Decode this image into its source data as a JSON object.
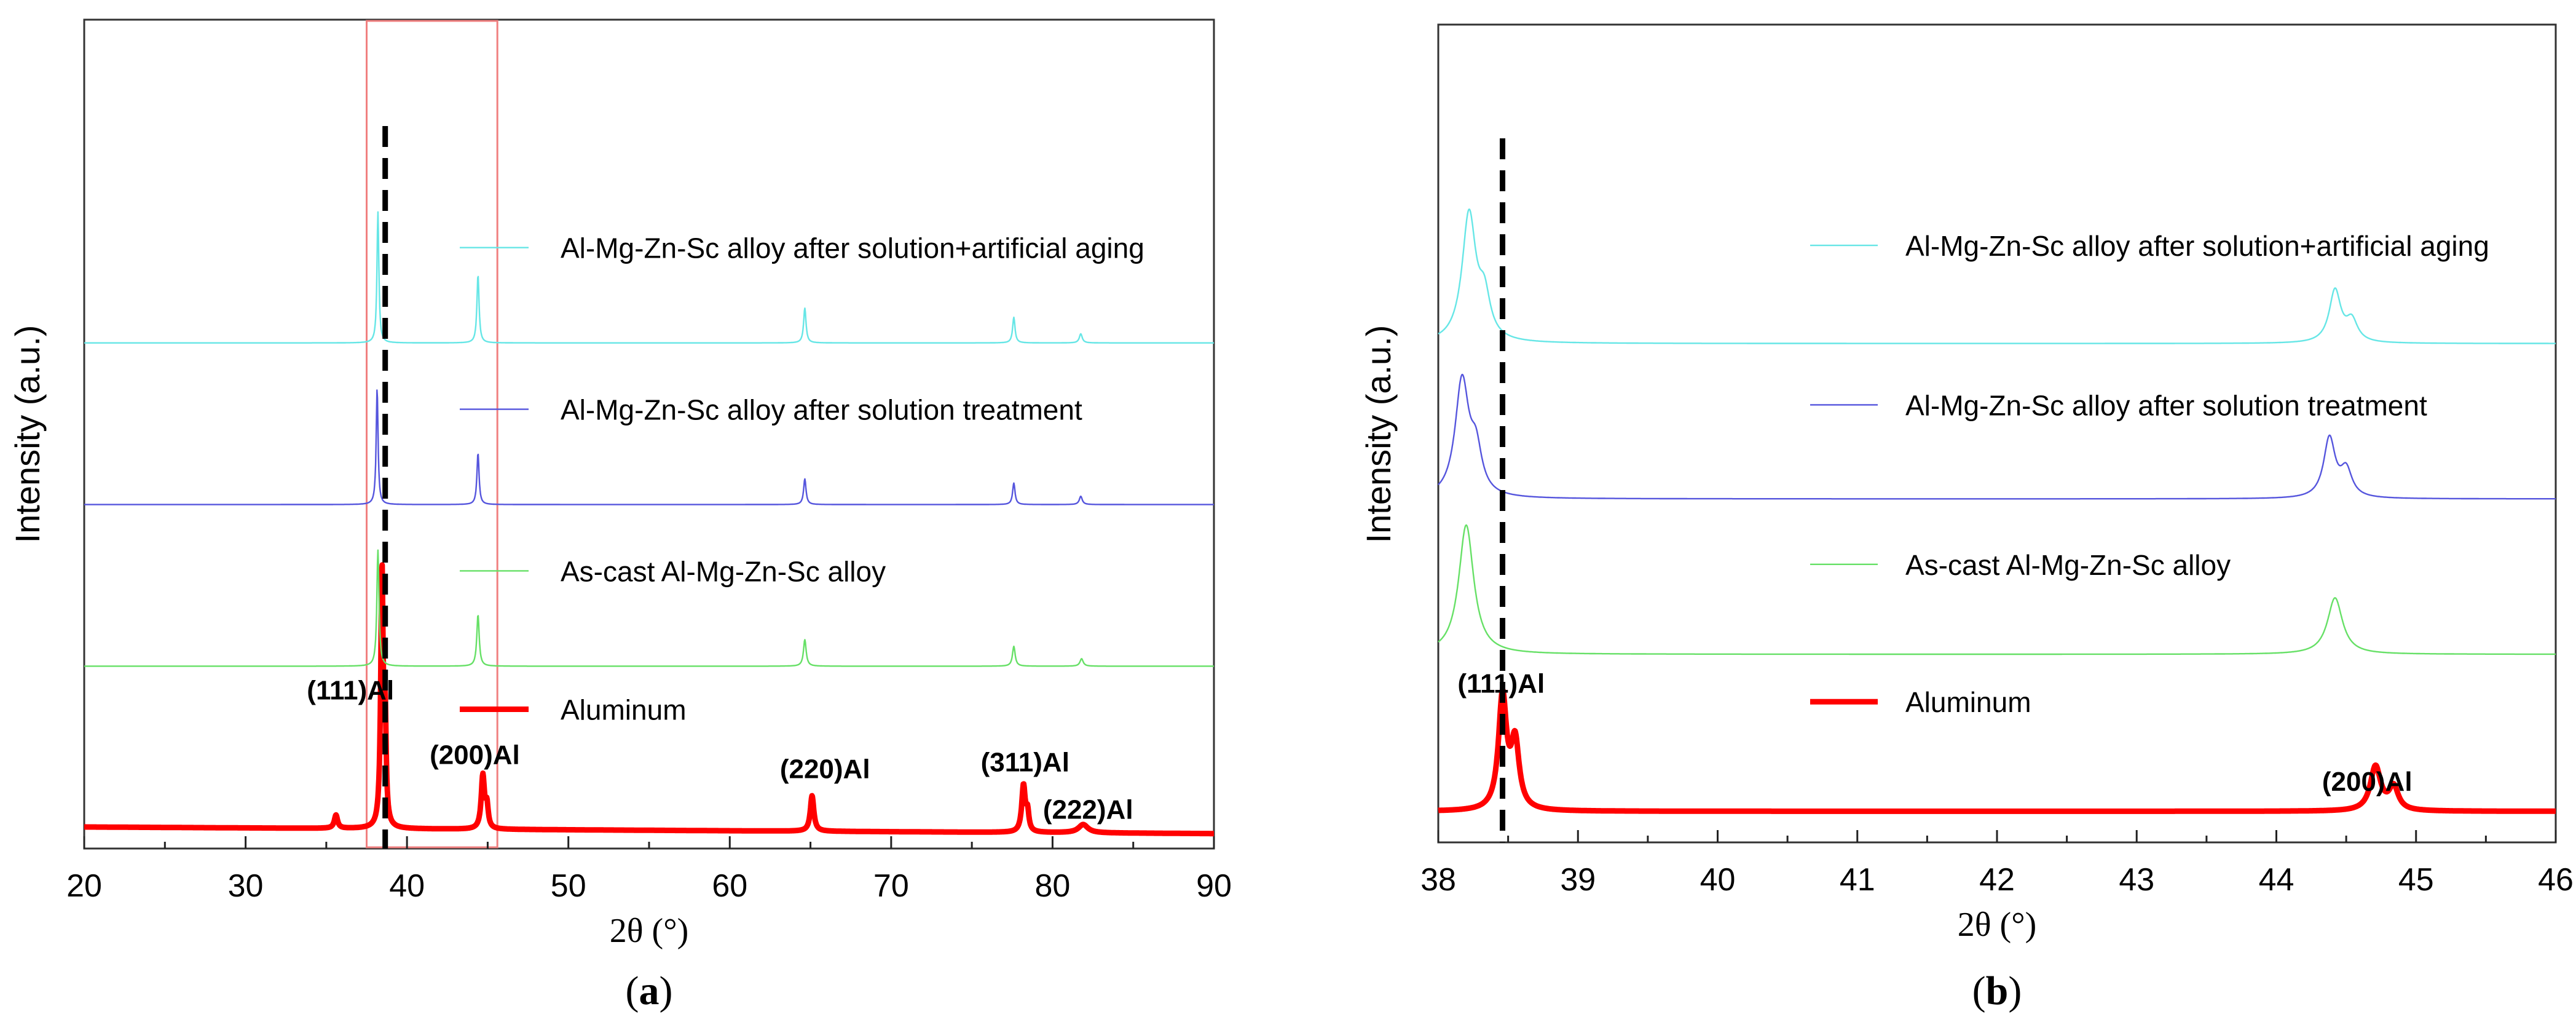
{
  "figure": {
    "panel_a_caption_open": "(",
    "panel_a_caption_letter": "a",
    "panel_a_caption_close": ")",
    "panel_b_caption_open": "(",
    "panel_b_caption_letter": "b",
    "panel_b_caption_close": ")"
  },
  "colors": {
    "aluminum": "#ff0000",
    "as_cast": "#66e066",
    "solution": "#5555dd",
    "aging": "#66e6e6",
    "dashed": "#000000",
    "zoom_box": "#f08080",
    "axis": "#222222"
  },
  "chart_data": [
    {
      "type": "line",
      "panel": "a",
      "title": "",
      "xlabel": "2θ (°)",
      "ylabel": "Intensity (a.u.)",
      "xlim": [
        20,
        90
      ],
      "xticks": [
        20,
        30,
        40,
        50,
        60,
        70,
        80,
        90
      ],
      "ylim": [
        0,
        100
      ],
      "yticks": [],
      "grid": false,
      "legend_placement": "inline-right-of-box",
      "reference_line_x": 38.65,
      "zoom_box_x": [
        37.5,
        45.6
      ],
      "series": [
        {
          "name": "Aluminum",
          "color_key": "aluminum",
          "line_weight": "thick",
          "baseline": 2.6,
          "baseline_drift": [
            [
              20,
              0.0
            ],
            [
              90,
              -0.8
            ]
          ],
          "peaks": [
            [
              35.6,
              1.6,
              0.12
            ],
            [
              38.45,
              31.0,
              0.09
            ],
            [
              38.65,
              11.5,
              0.07
            ],
            [
              44.7,
              6.4,
              0.12
            ],
            [
              44.95,
              2.6,
              0.1
            ],
            [
              65.1,
              4.3,
              0.13
            ],
            [
              78.2,
              5.6,
              0.13
            ],
            [
              78.45,
              2.2,
              0.1
            ],
            [
              81.9,
              1.0,
              0.35
            ]
          ]
        },
        {
          "name": "As-cast Al-Mg-Zn-Sc alloy",
          "color_key": "as_cast",
          "line_weight": "thin",
          "baseline": 22.0,
          "baseline_drift": [
            [
              20,
              0.0
            ],
            [
              90,
              0.0
            ]
          ],
          "peaks": [
            [
              38.2,
              14.0,
              0.08
            ],
            [
              44.4,
              6.2,
              0.09
            ],
            [
              64.65,
              3.2,
              0.1
            ],
            [
              77.6,
              2.4,
              0.1
            ],
            [
              81.8,
              0.9,
              0.12
            ]
          ]
        },
        {
          "name": "Al-Mg-Zn-Sc alloy after solution treatment",
          "color_key": "solution",
          "line_weight": "thin",
          "baseline": 41.5,
          "baseline_drift": [
            [
              20,
              0.0
            ],
            [
              90,
              0.0
            ]
          ],
          "peaks": [
            [
              38.15,
              14.0,
              0.07
            ],
            [
              44.4,
              6.2,
              0.08
            ],
            [
              64.65,
              3.1,
              0.09
            ],
            [
              77.6,
              2.6,
              0.09
            ],
            [
              81.75,
              1.0,
              0.11
            ]
          ]
        },
        {
          "name": "Al-Mg-Zn-Sc alloy after solution+artificial aging",
          "color_key": "aging",
          "line_weight": "thin",
          "baseline": 61.0,
          "baseline_drift": [
            [
              20,
              0.0
            ],
            [
              90,
              0.0
            ]
          ],
          "peaks": [
            [
              38.2,
              15.8,
              0.07
            ],
            [
              44.4,
              8.2,
              0.08
            ],
            [
              64.65,
              4.2,
              0.09
            ],
            [
              77.6,
              3.1,
              0.09
            ],
            [
              81.75,
              1.1,
              0.11
            ]
          ]
        }
      ],
      "legend": [
        {
          "label": "Al-Mg-Zn-Sc alloy after solution+artificial aging",
          "color_key": "aging",
          "line_weight": "thin",
          "level": 72.5
        },
        {
          "label": "Al-Mg-Zn-Sc alloy after solution treatment",
          "color_key": "solution",
          "line_weight": "thin",
          "level": 53.0
        },
        {
          "label": "As-cast Al-Mg-Zn-Sc alloy",
          "color_key": "as_cast",
          "line_weight": "thin",
          "level": 33.5
        },
        {
          "label": "Aluminum",
          "color_key": "aluminum",
          "line_weight": "thick",
          "level": 16.8
        }
      ],
      "annotations": [
        {
          "text": "(111)Al",
          "x": 36.5,
          "y": 18.0
        },
        {
          "text": "(200)Al",
          "x": 44.2,
          "y": 10.2
        },
        {
          "text": "(220)Al",
          "x": 65.9,
          "y": 8.5
        },
        {
          "text": "(311)Al",
          "x": 78.3,
          "y": 9.3
        },
        {
          "text": "(222)Al",
          "x": 82.2,
          "y": 3.6
        }
      ]
    },
    {
      "type": "line",
      "panel": "b",
      "title": "",
      "xlabel": "2θ (°)",
      "ylabel": "Intensity (a.u.)",
      "xlim": [
        38,
        46
      ],
      "xticks": [
        38,
        39,
        40,
        41,
        42,
        43,
        44,
        45,
        46
      ],
      "ylim": [
        0,
        100
      ],
      "yticks": [],
      "grid": false,
      "legend_placement": "inline-center",
      "reference_line_x": 38.46,
      "series": [
        {
          "name": "Aluminum",
          "color_key": "aluminum",
          "line_weight": "thick",
          "baseline": 3.8,
          "baseline_drift": [
            [
              38,
              0.0
            ],
            [
              46,
              0.0
            ]
          ],
          "peaks": [
            [
              38.46,
              13.8,
              0.035
            ],
            [
              38.55,
              8.0,
              0.035
            ],
            [
              44.71,
              5.4,
              0.045
            ],
            [
              44.84,
              2.8,
              0.04
            ]
          ]
        },
        {
          "name": "As-cast Al-Mg-Zn-Sc alloy",
          "color_key": "as_cast",
          "line_weight": "thin",
          "baseline": 23.0,
          "baseline_drift": [
            [
              38,
              0.0
            ],
            [
              46,
              0.0
            ]
          ],
          "peaks": [
            [
              38.2,
              15.8,
              0.065
            ],
            [
              44.42,
              6.9,
              0.065
            ]
          ]
        },
        {
          "name": "Al-Mg-Zn-Sc alloy after solution treatment",
          "color_key": "solution",
          "line_weight": "thin",
          "baseline": 42.0,
          "baseline_drift": [
            [
              38,
              0.0
            ],
            [
              46,
              0.0
            ]
          ],
          "peaks": [
            [
              38.17,
              14.2,
              0.06
            ],
            [
              38.27,
              5.0,
              0.05
            ],
            [
              44.38,
              7.3,
              0.05
            ],
            [
              44.5,
              3.3,
              0.05
            ]
          ]
        },
        {
          "name": "Al-Mg-Zn-Sc alloy after solution+artificial aging",
          "color_key": "aging",
          "line_weight": "thin",
          "baseline": 61.0,
          "baseline_drift": [
            [
              38,
              0.0
            ],
            [
              46,
              0.0
            ]
          ],
          "peaks": [
            [
              38.22,
              15.6,
              0.06
            ],
            [
              38.33,
              4.8,
              0.05
            ],
            [
              44.42,
              6.4,
              0.05
            ],
            [
              44.54,
              2.6,
              0.05
            ]
          ]
        }
      ],
      "legend": [
        {
          "label": "Al-Mg-Zn-Sc alloy after solution+artificial aging",
          "color_key": "aging",
          "line_weight": "thin",
          "level": 73.0
        },
        {
          "label": "Al-Mg-Zn-Sc alloy after solution treatment",
          "color_key": "solution",
          "line_weight": "thin",
          "level": 53.5
        },
        {
          "label": "As-cast Al-Mg-Zn-Sc alloy",
          "color_key": "as_cast",
          "line_weight": "thin",
          "level": 34.0
        },
        {
          "label": "Aluminum",
          "color_key": "aluminum",
          "line_weight": "thick",
          "level": 17.2
        }
      ],
      "annotations": [
        {
          "text": "(111)Al",
          "x": 38.45,
          "y": 18.3
        },
        {
          "text": "(200)Al",
          "x": 44.65,
          "y": 6.3
        }
      ]
    }
  ]
}
